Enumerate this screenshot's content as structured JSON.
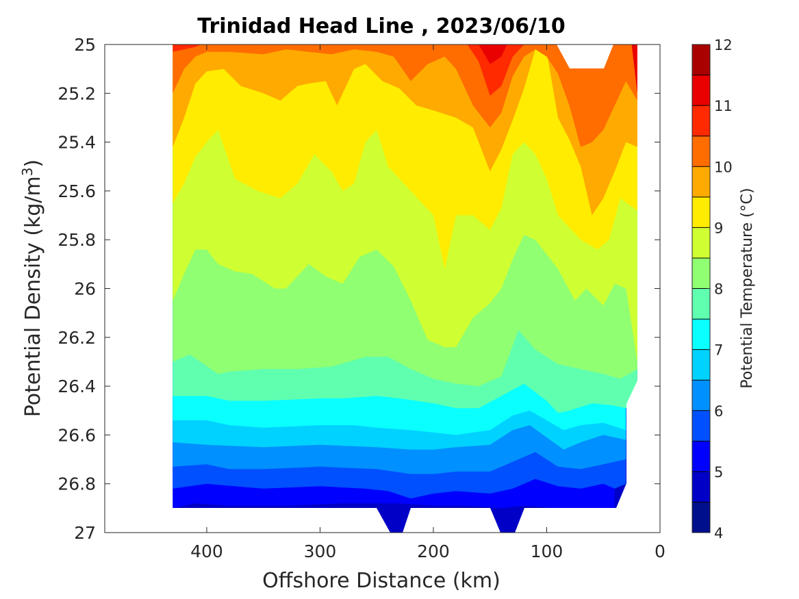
{
  "chart_data": {
    "type": "filled-contour",
    "title": "Trinidad Head Line , 2023/06/10",
    "xlabel": "Offshore Distance (km)",
    "ylabel_main": "Potential Density (kg/m",
    "ylabel_sup": "3",
    "ylabel_tail": ")",
    "x_axis": {
      "reversed": true,
      "range": [
        490,
        0
      ],
      "ticks": [
        400,
        300,
        200,
        100,
        0
      ],
      "tick_labels": [
        "400",
        "300",
        "200",
        "100",
        "0"
      ]
    },
    "y_axis": {
      "reversed": true,
      "range": [
        25,
        27
      ],
      "ticks": [
        25,
        25.2,
        25.4,
        25.6,
        25.8,
        26,
        26.2,
        26.4,
        26.6,
        26.8,
        27
      ],
      "tick_labels": [
        "25",
        "25.2",
        "25.4",
        "25.6",
        "25.8",
        "26",
        "26.2",
        "26.4",
        "26.6",
        "26.8",
        "27"
      ]
    },
    "data_extent_km": [
      430,
      20
    ],
    "colorbar": {
      "label": "Potential Temperature (°C)",
      "range": [
        4,
        12
      ],
      "step": 0.5,
      "ticks": [
        4,
        5,
        6,
        7,
        8,
        9,
        10,
        11,
        12
      ],
      "tick_labels": [
        "4",
        "5",
        "6",
        "7",
        "8",
        "9",
        "10",
        "11",
        "12"
      ],
      "colors": [
        "#000f8b",
        "#0000c6",
        "#0000ff",
        "#0050ff",
        "#0090ff",
        "#00d2ff",
        "#0affff",
        "#60ffaf",
        "#90ff72",
        "#cfff32",
        "#ffec00",
        "#ffaa00",
        "#ff6c00",
        "#ff2a00",
        "#e90000",
        "#a90000"
      ]
    },
    "isotherms": [
      {
        "level": 5.0,
        "x": [
          430,
          410,
          380,
          330,
          280,
          230,
          200,
          170,
          140,
          120,
          90,
          60,
          40
        ],
        "y": [
          26.9,
          26.88,
          26.89,
          26.89,
          26.88,
          26.88,
          26.89,
          26.89,
          26.9,
          26.89,
          26.9,
          26.9,
          26.9
        ]
      },
      {
        "level": 5.5,
        "x": [
          430,
          400,
          350,
          300,
          260,
          240,
          220,
          200,
          180,
          150,
          130,
          110,
          90,
          70,
          50,
          40,
          30
        ],
        "y": [
          26.82,
          26.8,
          26.82,
          26.81,
          26.82,
          26.83,
          26.86,
          26.84,
          26.83,
          26.84,
          26.82,
          26.78,
          26.81,
          26.82,
          26.8,
          26.82,
          26.8
        ]
      },
      {
        "level": 6.0,
        "x": [
          430,
          400,
          380,
          350,
          300,
          250,
          220,
          200,
          180,
          150,
          130,
          110,
          90,
          70,
          50,
          30
        ],
        "y": [
          26.73,
          26.72,
          26.74,
          26.74,
          26.73,
          26.74,
          26.76,
          26.76,
          26.75,
          26.75,
          26.71,
          26.67,
          26.73,
          26.74,
          26.72,
          26.7
        ]
      },
      {
        "level": 6.5,
        "x": [
          430,
          400,
          350,
          300,
          250,
          220,
          200,
          180,
          150,
          130,
          115,
          100,
          85,
          70,
          50,
          30
        ],
        "y": [
          26.63,
          26.64,
          26.65,
          26.64,
          26.65,
          26.66,
          26.66,
          26.65,
          26.64,
          26.58,
          26.56,
          26.61,
          26.66,
          26.63,
          26.6,
          26.62
        ]
      },
      {
        "level": 7.0,
        "x": [
          430,
          400,
          380,
          350,
          300,
          270,
          250,
          220,
          200,
          180,
          150,
          130,
          115,
          100,
          85,
          70,
          50,
          30
        ],
        "y": [
          26.54,
          26.54,
          26.56,
          26.57,
          26.56,
          26.56,
          26.57,
          26.58,
          26.59,
          26.6,
          26.58,
          26.52,
          26.5,
          26.54,
          26.58,
          26.56,
          26.55,
          26.58
        ]
      },
      {
        "level": 7.5,
        "x": [
          430,
          400,
          380,
          350,
          300,
          280,
          250,
          230,
          200,
          180,
          160,
          140,
          120,
          100,
          90,
          80,
          60,
          40,
          20
        ],
        "y": [
          26.44,
          26.44,
          26.46,
          26.46,
          26.45,
          26.45,
          26.44,
          26.45,
          26.47,
          26.49,
          26.49,
          26.44,
          26.39,
          26.46,
          26.51,
          26.5,
          26.47,
          26.48,
          26.5
        ]
      },
      {
        "level": 8.0,
        "x": [
          430,
          415,
          390,
          380,
          350,
          320,
          290,
          260,
          240,
          220,
          200,
          180,
          160,
          140,
          125,
          110,
          90,
          70,
          50,
          35,
          20
        ],
        "y": [
          26.3,
          26.27,
          26.35,
          26.34,
          26.33,
          26.33,
          26.32,
          26.28,
          26.28,
          26.33,
          26.37,
          26.39,
          26.4,
          26.36,
          26.17,
          26.25,
          26.31,
          26.33,
          26.35,
          26.37,
          26.33
        ]
      },
      {
        "level": 8.5,
        "x": [
          430,
          420,
          410,
          400,
          390,
          375,
          360,
          340,
          330,
          310,
          295,
          280,
          265,
          250,
          235,
          220,
          205,
          190,
          180,
          165,
          150,
          140,
          130,
          120,
          110,
          100,
          90,
          75,
          65,
          50,
          40,
          30,
          20
        ],
        "y": [
          26.05,
          25.94,
          25.84,
          25.84,
          25.9,
          25.93,
          25.94,
          26.0,
          26.0,
          25.9,
          25.95,
          25.98,
          25.87,
          25.84,
          25.91,
          26.05,
          26.21,
          26.24,
          26.24,
          26.12,
          26.06,
          26.0,
          25.88,
          25.78,
          25.8,
          25.86,
          25.92,
          26.05,
          26.0,
          26.07,
          25.98,
          26.0,
          26.3
        ]
      },
      {
        "level": 9.0,
        "x": [
          430,
          420,
          410,
          400,
          390,
          375,
          355,
          335,
          320,
          305,
          290,
          280,
          270,
          260,
          250,
          240,
          220,
          200,
          190,
          180,
          165,
          150,
          140,
          130,
          120,
          110,
          100,
          90,
          70,
          55,
          45,
          35,
          20
        ],
        "y": [
          25.65,
          25.57,
          25.46,
          25.4,
          25.35,
          25.55,
          25.6,
          25.63,
          25.57,
          25.45,
          25.52,
          25.6,
          25.57,
          25.4,
          25.35,
          25.5,
          25.6,
          25.7,
          25.92,
          25.7,
          25.7,
          25.76,
          25.67,
          25.45,
          25.4,
          25.45,
          25.55,
          25.7,
          25.8,
          25.84,
          25.8,
          25.63,
          25.68
        ]
      },
      {
        "level": 9.5,
        "x": [
          430,
          420,
          410,
          400,
          385,
          370,
          350,
          335,
          320,
          310,
          295,
          285,
          270,
          260,
          245,
          230,
          215,
          200,
          180,
          165,
          150,
          140,
          130,
          120,
          110,
          100,
          90,
          80,
          70,
          60,
          50,
          40,
          30,
          20
        ],
        "y": [
          25.42,
          25.3,
          25.16,
          25.11,
          25.1,
          25.17,
          25.2,
          25.23,
          25.17,
          25.16,
          25.15,
          25.25,
          25.1,
          25.08,
          25.15,
          25.18,
          25.25,
          25.27,
          25.3,
          25.34,
          25.52,
          25.43,
          25.31,
          25.18,
          25.02,
          25.03,
          25.3,
          25.39,
          25.5,
          25.7,
          25.63,
          25.52,
          25.4,
          25.42
        ]
      },
      {
        "level": 10.0,
        "x": [
          430,
          420,
          410,
          400,
          380,
          350,
          330,
          310,
          290,
          270,
          250,
          235,
          220,
          205,
          190,
          180,
          165,
          150,
          140,
          130,
          120,
          110,
          100,
          90,
          80,
          70,
          60,
          50,
          40,
          30,
          20
        ],
        "y": [
          25.2,
          25.1,
          25.05,
          25.03,
          25.03,
          25.04,
          25.02,
          25.03,
          25.04,
          25.02,
          25.03,
          25.05,
          25.15,
          25.08,
          25.05,
          25.1,
          25.25,
          25.34,
          25.28,
          25.13,
          25.05,
          25.02,
          25.05,
          25.12,
          25.25,
          25.42,
          25.4,
          25.35,
          25.25,
          25.15,
          25.23
        ]
      },
      {
        "level": 10.5,
        "x": [
          430,
          420,
          410,
          405
        ],
        "y": [
          25.03,
          25.02,
          25.01,
          25.0
        ]
      },
      {
        "level": 10.5,
        "x": [
          170,
          160,
          150,
          140,
          130,
          120
        ],
        "y": [
          25.0,
          25.07,
          25.21,
          25.17,
          25.05,
          25.0
        ]
      },
      {
        "level": 11.0,
        "x": [
          160,
          150,
          140,
          135
        ],
        "y": [
          25.0,
          25.08,
          25.05,
          25.0
        ]
      },
      {
        "level": 11.0,
        "x": [
          25,
          20
        ],
        "y": [
          25.0,
          25.2
        ]
      }
    ]
  }
}
